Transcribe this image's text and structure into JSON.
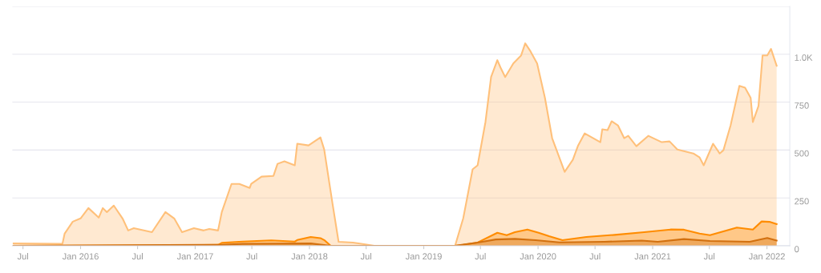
{
  "chart_data": {
    "type": "area",
    "xlim": [
      "2015-05-28",
      "2022-03-15"
    ],
    "xticks": [
      {
        "value": "2015-07-01",
        "label": "Jul"
      },
      {
        "value": "2016-01-01",
        "label": "Jan 2016"
      },
      {
        "value": "2016-07-01",
        "label": "Jul"
      },
      {
        "value": "2017-01-01",
        "label": "Jan 2017"
      },
      {
        "value": "2017-07-01",
        "label": "Jul"
      },
      {
        "value": "2018-01-01",
        "label": "Jan 2018"
      },
      {
        "value": "2018-07-01",
        "label": "Jul"
      },
      {
        "value": "2019-01-01",
        "label": "Jan 2019"
      },
      {
        "value": "2019-07-01",
        "label": "Jul"
      },
      {
        "value": "2020-01-01",
        "label": "Jan 2020"
      },
      {
        "value": "2020-07-01",
        "label": "Jul"
      },
      {
        "value": "2021-01-01",
        "label": "Jan 2021"
      },
      {
        "value": "2021-07-01",
        "label": "Jul"
      },
      {
        "value": "2022-01-01",
        "label": "Jan 2022"
      }
    ],
    "ylim": [
      0,
      1250
    ],
    "yticks": [
      0,
      250,
      500,
      750,
      {
        "value": 1000,
        "label": "1.0K"
      },
      {
        "value": 1250,
        "label": null
      }
    ],
    "grid": "y",
    "series": [
      {
        "color": "#ffc07a",
        "x": [
          "2015-06-01",
          "2015-11-04",
          "2015-11-11",
          "2015-12-07",
          "2016-01-01",
          "2016-01-26",
          "2016-02-28",
          "2016-03-12",
          "2016-03-25",
          "2016-04-16",
          "2016-05-14",
          "2016-06-01",
          "2016-06-19",
          "2016-08-16",
          "2016-09-28",
          "2016-10-26",
          "2016-11-20",
          "2016-12-28",
          "2017-01-28",
          "2017-02-15",
          "2017-03-15",
          "2017-03-27",
          "2017-04-27",
          "2017-05-22",
          "2017-06-24",
          "2017-06-29",
          "2017-08-01",
          "2017-09-08",
          "2017-09-21",
          "2017-10-13",
          "2017-11-15",
          "2017-11-23",
          "2017-12-29",
          "2018-02-05",
          "2018-02-17",
          "2018-03-15",
          "2018-04-04",
          "2018-05-20",
          "2018-06-24",
          "2018-07-27",
          "2019-04-11",
          "2019-05-07",
          "2019-06-06",
          "2019-06-22",
          "2019-07-17",
          "2019-08-04",
          "2019-08-24",
          "2019-09-03",
          "2019-09-18",
          "2019-10-14",
          "2019-11-08",
          "2019-11-21",
          "2019-12-08",
          "2019-12-29",
          "2020-01-23",
          "2020-02-15",
          "2020-03-26",
          "2020-04-21",
          "2020-05-08",
          "2020-05-29",
          "2020-07-18",
          "2020-07-24",
          "2020-08-10",
          "2020-08-23",
          "2020-09-12",
          "2020-10-02",
          "2020-10-15",
          "2020-11-10",
          "2020-12-18",
          "2021-01-30",
          "2021-02-24",
          "2021-03-21",
          "2021-05-11",
          "2021-05-31",
          "2021-06-13",
          "2021-07-13",
          "2021-08-03",
          "2021-08-15",
          "2021-09-07",
          "2021-10-05",
          "2021-10-23",
          "2021-11-10",
          "2021-11-17",
          "2021-12-05",
          "2021-12-18",
          "2022-01-02",
          "2022-01-14",
          "2022-02-01"
        ],
        "values": [
          12,
          10,
          63,
          126,
          143,
          197,
          147,
          197,
          176,
          210,
          143,
          80,
          92,
          71,
          176,
          143,
          71,
          92,
          80,
          88,
          80,
          176,
          323,
          323,
          302,
          323,
          361,
          365,
          428,
          441,
          420,
          533,
          524,
          566,
          503,
          226,
          21,
          17,
          8,
          0,
          0,
          143,
          399,
          420,
          646,
          881,
          969,
          931,
          881,
          952,
          994,
          1057,
          1015,
          952,
          772,
          562,
          386,
          449,
          524,
          587,
          541,
          608,
          604,
          650,
          629,
          562,
          574,
          520,
          574,
          541,
          545,
          503,
          482,
          461,
          420,
          533,
          482,
          499,
          629,
          835,
          826,
          772,
          646,
          730,
          994,
          994,
          1028,
          940
        ]
      },
      {
        "color": "#ff8c00",
        "x": [
          "2015-06-01",
          "2017-01-01",
          "2017-03-15",
          "2017-03-27",
          "2017-06-01",
          "2017-09-01",
          "2017-11-15",
          "2017-11-23",
          "2018-01-05",
          "2018-02-05",
          "2018-02-17",
          "2018-03-10",
          "2019-04-11",
          "2019-05-07",
          "2019-06-22",
          "2019-08-24",
          "2019-09-23",
          "2019-10-19",
          "2019-11-28",
          "2020-01-03",
          "2020-02-05",
          "2020-03-19",
          "2020-06-03",
          "2020-09-02",
          "2020-12-05",
          "2021-02-27",
          "2021-04-11",
          "2021-05-31",
          "2021-07-03",
          "2021-09-27",
          "2021-11-17",
          "2021-12-15",
          "2022-01-09",
          "2022-02-01"
        ],
        "values": [
          0,
          3,
          5,
          15,
          22,
          28,
          22,
          30,
          46,
          40,
          30,
          0,
          0,
          5,
          17,
          68,
          55,
          71,
          85,
          68,
          50,
          29,
          46,
          57,
          71,
          85,
          84,
          64,
          55,
          95,
          85,
          127,
          125,
          113
        ]
      },
      {
        "color": "#d2700f",
        "x": [
          "2015-06-01",
          "2017-03-27",
          "2017-06-01",
          "2018-01-05",
          "2018-03-10",
          "2019-04-11",
          "2019-05-02",
          "2019-06-22",
          "2019-08-19",
          "2019-10-19",
          "2019-12-24",
          "2020-03-09",
          "2020-07-31",
          "2020-11-27",
          "2021-01-17",
          "2021-04-11",
          "2021-07-03",
          "2021-11-07",
          "2022-01-02",
          "2022-02-01"
        ],
        "values": [
          0,
          5,
          10,
          12,
          0,
          0,
          5,
          17,
          33,
          36,
          29,
          18,
          21,
          27,
          21,
          35,
          25,
          21,
          41,
          27
        ]
      }
    ]
  }
}
